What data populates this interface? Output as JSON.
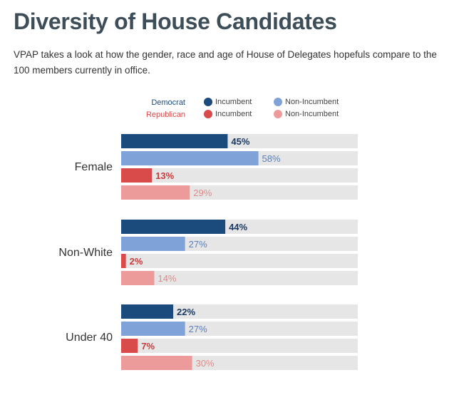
{
  "page": {
    "title": "Diversity of House Candidates",
    "intro": "VPAP takes a look at how the gender, race and age of House of Delegates hopefuls compare to the 100 members currently in office."
  },
  "legend": {
    "democrat_label": "Democrat",
    "republican_label": "Republican",
    "incumbent_label": "Incumbent",
    "non_incumbent_label": "Non-Incumbent"
  },
  "colors": {
    "dem_incumbent": "#1b4a7c",
    "dem_non_incumbent": "#7fa3d9",
    "rep_incumbent": "#d94a4a",
    "rep_non_incumbent": "#ec9a9a",
    "track": "#e6e6e6"
  },
  "chart_data": {
    "type": "bar",
    "orientation": "horizontal",
    "categories": [
      "Female",
      "Non-White",
      "Under 40"
    ],
    "series": [
      {
        "name": "Democrat Incumbent",
        "values": [
          45,
          44,
          22
        ],
        "labels": [
          "45%",
          "44%",
          "22%"
        ]
      },
      {
        "name": "Democrat Non-Incumbent",
        "values": [
          58,
          27,
          27
        ],
        "labels": [
          "58%",
          "27%",
          "27%"
        ]
      },
      {
        "name": "Republican Incumbent",
        "values": [
          13,
          2,
          7
        ],
        "labels": [
          "13%",
          "2%",
          "7%"
        ]
      },
      {
        "name": "Republican Non-Incumbent",
        "values": [
          29,
          14,
          30
        ],
        "labels": [
          "29%",
          "14%",
          "30%"
        ]
      }
    ],
    "xlim": [
      0,
      100
    ],
    "unit": "%",
    "legend_position": "top"
  }
}
